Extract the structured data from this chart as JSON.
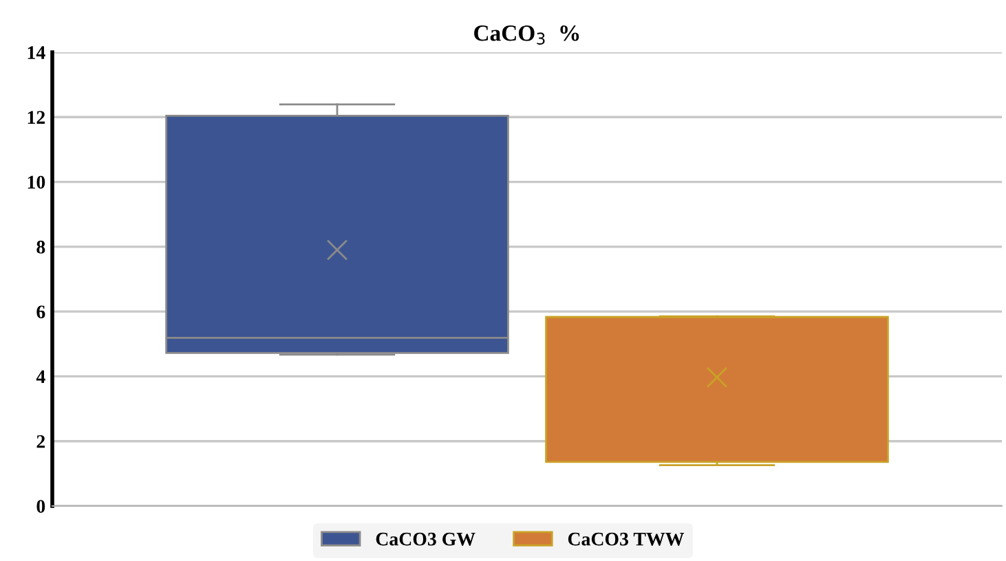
{
  "chart_data": {
    "type": "box",
    "title": "CaCO$_{3}$  %",
    "categories": [
      null
    ],
    "series": [
      {
        "name": "CaCO3 GW",
        "color": "#3c5592",
        "boxes": [
          {
            "low": 4.67,
            "q1": 4.72,
            "median": 5.19,
            "q3": 12.04,
            "high": 12.39,
            "mean": 7.9
          }
        ]
      },
      {
        "name": "CaCO3 TWW",
        "color": "#d27b38",
        "boxes": [
          {
            "low": 1.26,
            "q1": 1.36,
            "median": 5.83,
            "q3": 5.83,
            "high": 5.85,
            "mean": 3.97
          }
        ]
      }
    ],
    "ylim": [
      0,
      14
    ],
    "yticks": [
      0,
      2,
      4,
      6,
      8,
      10,
      12,
      14
    ],
    "grid": "y",
    "legend": "bottom"
  }
}
